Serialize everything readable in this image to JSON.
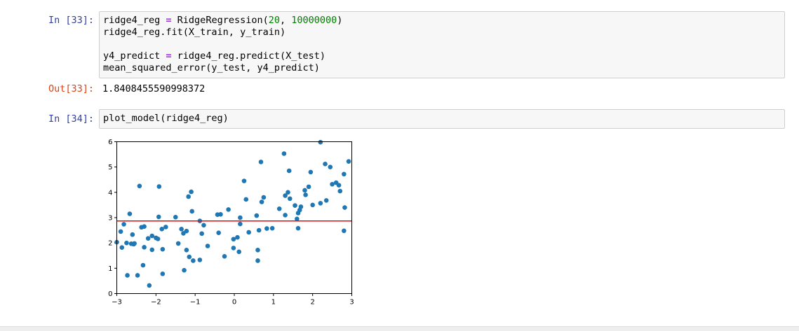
{
  "cells": [
    {
      "in_prompt": "In [33]:",
      "code": {
        "line1": {
          "a": "ridge4_reg ",
          "op": "=",
          "b": " RidgeRegression(",
          "n1": "20",
          "c": ", ",
          "n2": "10000000",
          "d": ")"
        },
        "line2": "ridge4_reg.fit(X_train, y_train)",
        "line3": "",
        "line4": {
          "a": "y4_predict ",
          "op": "=",
          "b": " ridge4_reg.predict(X_test)"
        },
        "line5": "mean_squared_error(y_test, y4_predict)"
      },
      "out_prompt": "Out[33]:",
      "output": "1.8408455590998372"
    },
    {
      "in_prompt": "In [34]:",
      "code": {
        "line1": "plot_model(ridge4_reg)"
      }
    }
  ],
  "chart_data": {
    "type": "scatter",
    "xlim": [
      -3,
      3
    ],
    "ylim": [
      0,
      6
    ],
    "xticks": [
      "−3",
      "−2",
      "−1",
      "0",
      "1",
      "2",
      "3"
    ],
    "yticks": [
      "0",
      "1",
      "2",
      "3",
      "4",
      "5",
      "6"
    ],
    "point_color": "#1f77b4",
    "line_color": "#ff0000",
    "fit_line": {
      "x": [
        -3,
        3
      ],
      "y": [
        2.87,
        2.87
      ]
    },
    "points": [
      [
        -3.0,
        2.03
      ],
      [
        -2.9,
        2.45
      ],
      [
        -2.87,
        1.82
      ],
      [
        -2.82,
        2.74
      ],
      [
        -2.75,
        2.0
      ],
      [
        -2.73,
        0.72
      ],
      [
        -2.67,
        3.15
      ],
      [
        -2.63,
        1.97
      ],
      [
        -2.6,
        2.33
      ],
      [
        -2.57,
        1.95
      ],
      [
        -2.55,
        1.98
      ],
      [
        -2.47,
        0.72
      ],
      [
        -2.42,
        4.25
      ],
      [
        -2.37,
        2.62
      ],
      [
        -2.33,
        1.12
      ],
      [
        -2.3,
        2.65
      ],
      [
        -2.3,
        1.83
      ],
      [
        -2.2,
        2.18
      ],
      [
        -2.17,
        0.32
      ],
      [
        -2.1,
        1.73
      ],
      [
        -2.1,
        2.28
      ],
      [
        -2.0,
        2.2
      ],
      [
        -1.95,
        2.16
      ],
      [
        -1.93,
        3.03
      ],
      [
        -1.92,
        4.23
      ],
      [
        -1.85,
        2.55
      ],
      [
        -1.83,
        1.75
      ],
      [
        -1.83,
        0.78
      ],
      [
        -1.75,
        2.63
      ],
      [
        -1.5,
        3.02
      ],
      [
        -1.43,
        1.98
      ],
      [
        -1.35,
        2.55
      ],
      [
        -1.3,
        2.38
      ],
      [
        -1.28,
        0.92
      ],
      [
        -1.22,
        2.47
      ],
      [
        -1.22,
        1.72
      ],
      [
        -1.17,
        3.83
      ],
      [
        -1.15,
        1.45
      ],
      [
        -1.1,
        4.02
      ],
      [
        -1.08,
        3.25
      ],
      [
        -1.05,
        1.3
      ],
      [
        -0.88,
        1.33
      ],
      [
        -0.88,
        2.87
      ],
      [
        -0.83,
        2.37
      ],
      [
        -0.78,
        2.7
      ],
      [
        -0.68,
        1.88
      ],
      [
        -0.43,
        3.12
      ],
      [
        -0.4,
        2.4
      ],
      [
        -0.35,
        3.13
      ],
      [
        -0.25,
        1.47
      ],
      [
        -0.15,
        3.32
      ],
      [
        -0.02,
        1.8
      ],
      [
        -0.02,
        2.15
      ],
      [
        0.08,
        2.22
      ],
      [
        0.12,
        1.65
      ],
      [
        0.15,
        2.75
      ],
      [
        0.15,
        3.0
      ],
      [
        0.25,
        4.45
      ],
      [
        0.3,
        3.72
      ],
      [
        0.37,
        2.42
      ],
      [
        0.57,
        3.08
      ],
      [
        0.6,
        1.72
      ],
      [
        0.6,
        1.3
      ],
      [
        0.63,
        2.5
      ],
      [
        0.68,
        5.2
      ],
      [
        0.7,
        3.62
      ],
      [
        0.75,
        3.8
      ],
      [
        0.83,
        2.57
      ],
      [
        0.97,
        2.58
      ],
      [
        1.15,
        3.35
      ],
      [
        1.27,
        5.53
      ],
      [
        1.3,
        3.87
      ],
      [
        1.3,
        3.1
      ],
      [
        1.37,
        4.0
      ],
      [
        1.4,
        4.85
      ],
      [
        1.42,
        3.75
      ],
      [
        1.55,
        3.48
      ],
      [
        1.6,
        2.95
      ],
      [
        1.63,
        2.58
      ],
      [
        1.63,
        3.18
      ],
      [
        1.67,
        3.3
      ],
      [
        1.7,
        3.43
      ],
      [
        1.8,
        4.08
      ],
      [
        1.82,
        3.9
      ],
      [
        1.9,
        4.22
      ],
      [
        1.95,
        4.8
      ],
      [
        2.0,
        3.5
      ],
      [
        2.2,
        5.98
      ],
      [
        2.2,
        3.57
      ],
      [
        2.32,
        5.12
      ],
      [
        2.35,
        3.68
      ],
      [
        2.45,
        5.0
      ],
      [
        2.5,
        4.32
      ],
      [
        2.6,
        4.38
      ],
      [
        2.67,
        4.28
      ],
      [
        2.7,
        4.05
      ],
      [
        2.8,
        4.72
      ],
      [
        2.82,
        3.4
      ],
      [
        2.8,
        2.48
      ],
      [
        2.92,
        5.22
      ]
    ]
  }
}
